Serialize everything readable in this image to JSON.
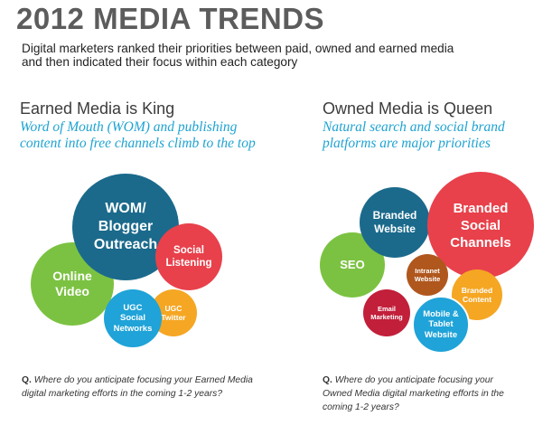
{
  "header": {
    "title": "2012 MEDIA TRENDS",
    "subtitle_line1": "Digital marketers ranked their priorities between paid, owned and earned media",
    "subtitle_line2": "and then indicated their focus within each category"
  },
  "earned": {
    "heading": "Earned Media is King",
    "tagline_line1": "Word of Mouth (WOM) and publishing",
    "tagline_line2": "content into free channels climb to the top",
    "bubbles": {
      "wom": [
        "WOM/",
        "Blogger",
        "Outreach"
      ],
      "online_video": [
        "Online",
        "Video"
      ],
      "social_listening": [
        "Social",
        "Listening"
      ],
      "ugc_social": [
        "UGC",
        "Social",
        "Networks"
      ],
      "ugc_twitter": [
        "UGC",
        "Twitter"
      ]
    },
    "question_prefix": "Q.",
    "question_line1": "Where do you anticipate focusing your Earned Media",
    "question_line2": "digital marketing efforts in the coming 1-2 years?"
  },
  "owned": {
    "heading": "Owned Media is Queen",
    "tagline_line1": "Natural search and social brand",
    "tagline_line2": "platforms are major priorities",
    "bubbles": {
      "branded_social": [
        "Branded",
        "Social",
        "Channels"
      ],
      "branded_website": [
        "Branded",
        "Website"
      ],
      "seo": [
        "SEO"
      ],
      "intranet": [
        "Intranet",
        "Website"
      ],
      "branded_content": [
        "Branded",
        "Content"
      ],
      "email": [
        "Email",
        "Marketing"
      ],
      "mobile": [
        "Mobile &",
        "Tablet",
        "Website"
      ]
    },
    "question_prefix": "Q.",
    "question_line1": "Where do you anticipate focusing your",
    "question_line2": "Owned Media digital marketing efforts in the",
    "question_line3": "coming 1-2 years?"
  },
  "colors": {
    "teal_blue": "#1b6a8c",
    "lime_green": "#7cc242",
    "coral_red": "#e8414b",
    "sky_blue": "#1fa3d8",
    "orange": "#f5a623",
    "crimson": "#c21f3a",
    "brown": "#b0571e",
    "title_gray": "#5c5c5c",
    "accent_blue": "#1fa3d2"
  }
}
